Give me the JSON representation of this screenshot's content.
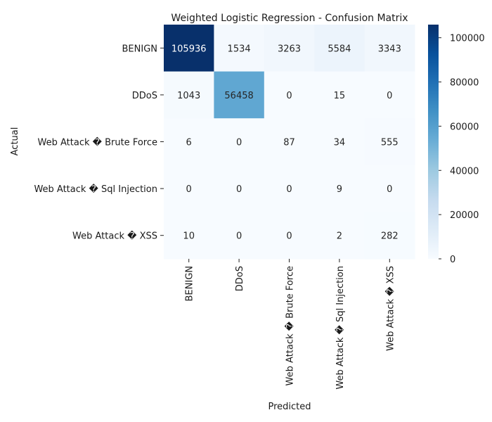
{
  "chart_data": {
    "type": "heatmap",
    "title": "Weighted Logistic Regression - Confusion Matrix",
    "xlabel": "Predicted",
    "ylabel": "Actual",
    "row_labels": [
      "BENIGN",
      "DDoS",
      "Web Attack � Brute Force",
      "Web Attack � Sql Injection",
      "Web Attack � XSS"
    ],
    "col_labels": [
      "BENIGN",
      "DDoS",
      "Web Attack � Brute Force",
      "Web Attack � Sql Injection",
      "Web Attack � XSS"
    ],
    "values": [
      [
        105936,
        1534,
        3263,
        5584,
        3343
      ],
      [
        1043,
        56458,
        0,
        15,
        0
      ],
      [
        6,
        0,
        87,
        34,
        555
      ],
      [
        0,
        0,
        0,
        9,
        0
      ],
      [
        10,
        0,
        0,
        2,
        282
      ]
    ],
    "colormap": "Blues",
    "colorbar_range": [
      0,
      105936
    ],
    "colorbar_ticks": [
      "0",
      "20000",
      "40000",
      "60000",
      "80000",
      "100000"
    ],
    "colorbar_tick_values": [
      0,
      20000,
      40000,
      60000,
      80000,
      100000
    ],
    "colors": {
      "low": "#f7fbff",
      "high": "#08306b"
    }
  }
}
